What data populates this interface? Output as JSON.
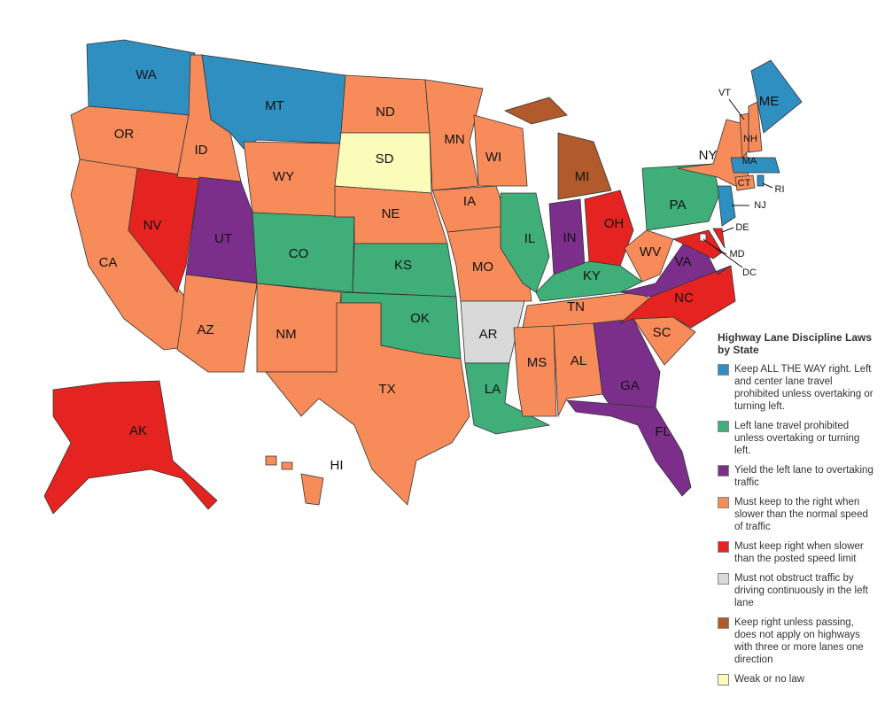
{
  "legend": {
    "title": "Highway Lane Discipline Laws by State",
    "items": [
      {
        "label": "Keep ALL THE WAY right. Left and center lane travel prohibited unless overtaking or turning left.",
        "color": "#2f8fc1"
      },
      {
        "label": "Left lane travel prohibited unless overtaking or turning left.",
        "color": "#3fae78"
      },
      {
        "label": "Yield the left lane to overtaking traffic",
        "color": "#7b2f8b"
      },
      {
        "label": "Must keep to the right when slower than the normal speed of traffic",
        "color": "#f78c5a"
      },
      {
        "label": "Must keep right when slower than the posted speed limit",
        "color": "#e52421"
      },
      {
        "label": "Must not obstruct traffic by driving continuously in the left lane",
        "color": "#d9d9d9"
      },
      {
        "label": "Keep right unless passing, does not apply on highways with three or more lanes one direction",
        "color": "#b15a2b"
      },
      {
        "label": "Weak or no law",
        "color": "#fbfbba"
      }
    ]
  },
  "states": [
    {
      "label": "WA",
      "color": "#2f8fc1"
    },
    {
      "label": "OR",
      "color": "#f78c5a"
    },
    {
      "label": "CA",
      "color": "#f78c5a"
    },
    {
      "label": "NV",
      "color": "#e52421"
    },
    {
      "label": "ID",
      "color": "#f78c5a"
    },
    {
      "label": "MT",
      "color": "#2f8fc1"
    },
    {
      "label": "WY",
      "color": "#f78c5a"
    },
    {
      "label": "UT",
      "color": "#7b2f8b"
    },
    {
      "label": "AZ",
      "color": "#f78c5a"
    },
    {
      "label": "CO",
      "color": "#3fae78"
    },
    {
      "label": "NM",
      "color": "#f78c5a"
    },
    {
      "label": "ND",
      "color": "#f78c5a"
    },
    {
      "label": "SD",
      "color": "#fbfbba"
    },
    {
      "label": "NE",
      "color": "#f78c5a"
    },
    {
      "label": "KS",
      "color": "#3fae78"
    },
    {
      "label": "OK",
      "color": "#3fae78"
    },
    {
      "label": "TX",
      "color": "#f78c5a"
    },
    {
      "label": "MN",
      "color": "#f78c5a"
    },
    {
      "label": "IA",
      "color": "#f78c5a"
    },
    {
      "label": "MO",
      "color": "#f78c5a"
    },
    {
      "label": "AR",
      "color": "#d9d9d9"
    },
    {
      "label": "LA",
      "color": "#3fae78"
    },
    {
      "label": "WI",
      "color": "#f78c5a"
    },
    {
      "label": "IL",
      "color": "#3fae78"
    },
    {
      "label": "MI",
      "color": "#b15a2b"
    },
    {
      "label": "IN",
      "color": "#7b2f8b"
    },
    {
      "label": "OH",
      "color": "#e52421"
    },
    {
      "label": "KY",
      "color": "#3fae78"
    },
    {
      "label": "TN",
      "color": "#f78c5a"
    },
    {
      "label": "MS",
      "color": "#f78c5a"
    },
    {
      "label": "AL",
      "color": "#f78c5a"
    },
    {
      "label": "GA",
      "color": "#7b2f8b"
    },
    {
      "label": "FL",
      "color": "#7b2f8b"
    },
    {
      "label": "SC",
      "color": "#f78c5a"
    },
    {
      "label": "NC",
      "color": "#e52421"
    },
    {
      "label": "VA",
      "color": "#7b2f8b"
    },
    {
      "label": "WV",
      "color": "#f78c5a"
    },
    {
      "label": "PA",
      "color": "#3fae78"
    },
    {
      "label": "NY",
      "color": "#f78c5a"
    },
    {
      "label": "MD",
      "color": "#e52421"
    },
    {
      "label": "DE",
      "color": "#e52421"
    },
    {
      "label": "NJ",
      "color": "#2f8fc1"
    },
    {
      "label": "CT",
      "color": "#f78c5a"
    },
    {
      "label": "RI",
      "color": "#2f8fc1"
    },
    {
      "label": "MA",
      "color": "#2f8fc1"
    },
    {
      "label": "VT",
      "color": "#f78c5a"
    },
    {
      "label": "NH",
      "color": "#f78c5a"
    },
    {
      "label": "ME",
      "color": "#2f8fc1"
    },
    {
      "label": "DC",
      "color": "#ffffff"
    },
    {
      "label": "AK",
      "color": "#e52421"
    },
    {
      "label": "HI",
      "color": "#f78c5a"
    }
  ]
}
